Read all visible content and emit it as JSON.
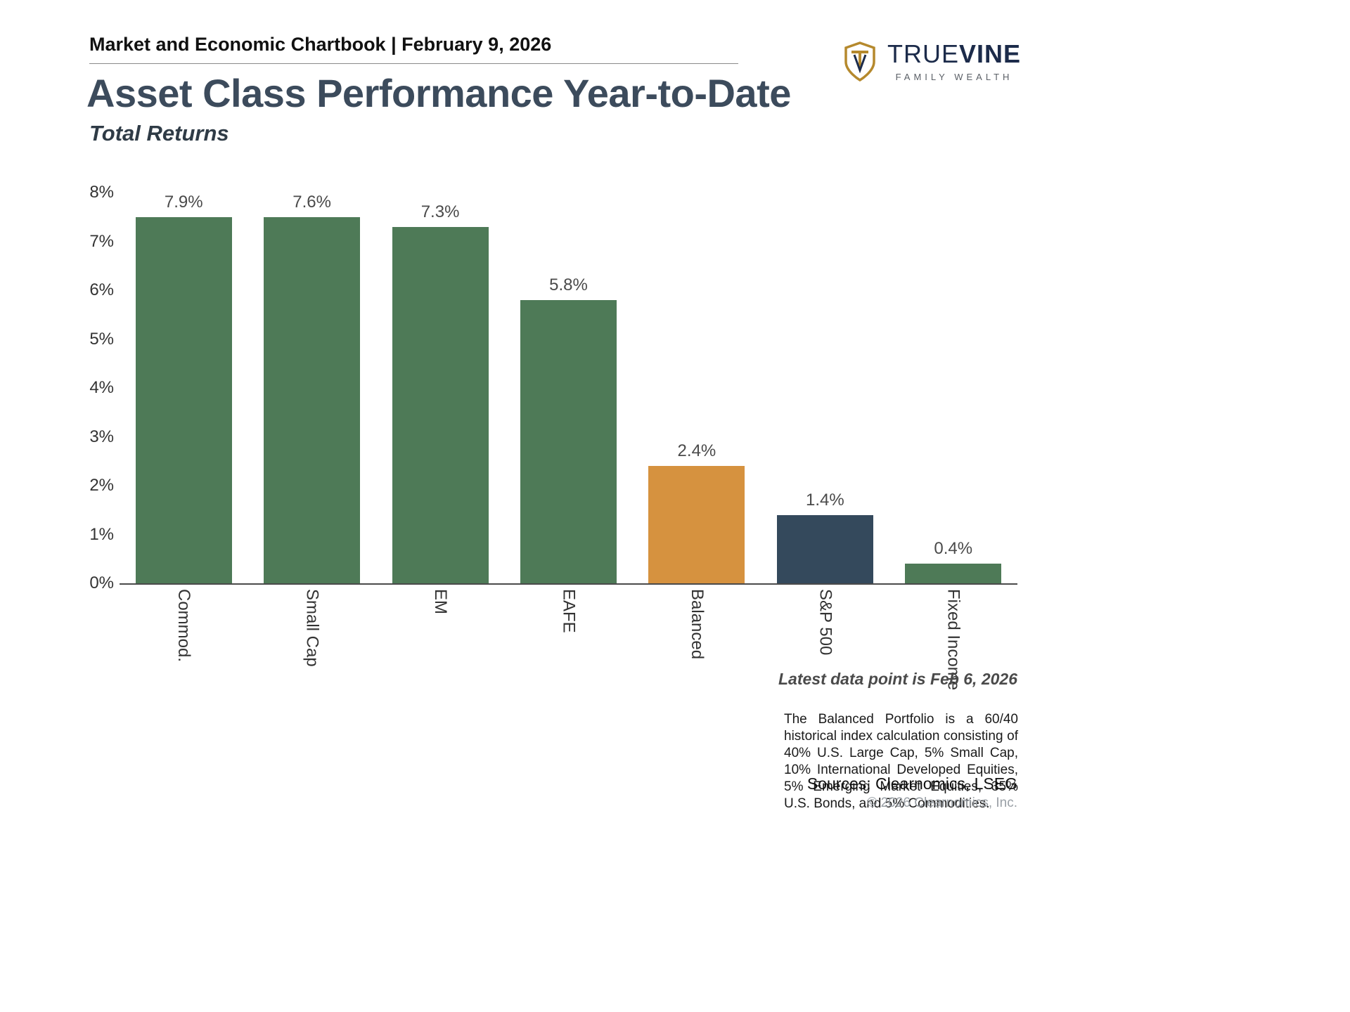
{
  "header": {
    "chartbook_title": "Market and Economic Chartbook | February 9, 2026"
  },
  "logo": {
    "brand_part1": "TRUE",
    "brand_part2": "VINE",
    "tagline": "FAMILY WEALTH",
    "shield_color": "#b5892d",
    "wordmark_color": "#1c2b4a"
  },
  "page": {
    "title": "Asset Class Performance Year-to-Date",
    "subtitle": "Total Returns"
  },
  "chart_data": {
    "type": "bar",
    "title": "Asset Class Performance Year-to-Date",
    "subtitle": "Total Returns",
    "categories": [
      "Commod.",
      "Small Cap",
      "EM",
      "EAFE",
      "Balanced",
      "S&P 500",
      "Fixed Income"
    ],
    "values": [
      7.9,
      7.6,
      7.3,
      5.8,
      2.4,
      1.4,
      0.4
    ],
    "value_labels": [
      "7.9%",
      "7.6%",
      "7.3%",
      "5.8%",
      "2.4%",
      "1.4%",
      "0.4%"
    ],
    "bar_colors": [
      "#4e7a57",
      "#4e7a57",
      "#4e7a57",
      "#4e7a57",
      "#d6923f",
      "#34495c",
      "#4e7a57"
    ],
    "xlabel": "",
    "ylabel": "",
    "ylim": [
      0,
      8
    ],
    "yticks": [
      "0%",
      "1%",
      "2%",
      "3%",
      "4%",
      "5%",
      "6%",
      "7%",
      "8%"
    ],
    "grid": false,
    "legend": false
  },
  "notes": {
    "latest_data_point": "Latest data point is Feb 6, 2026",
    "balanced_note": "The Balanced Portfolio is a 60/40 historical index calculation consisting of 40% U.S. Large Cap, 5% Small Cap, 10% International Developed Equities, 5% Emerging Market Equities, 35% U.S. Bonds, and 5% Commodities.",
    "sources": "Sources: Clearnomics, LSEG",
    "copyright": "© 2026 Clearnomics, Inc."
  }
}
